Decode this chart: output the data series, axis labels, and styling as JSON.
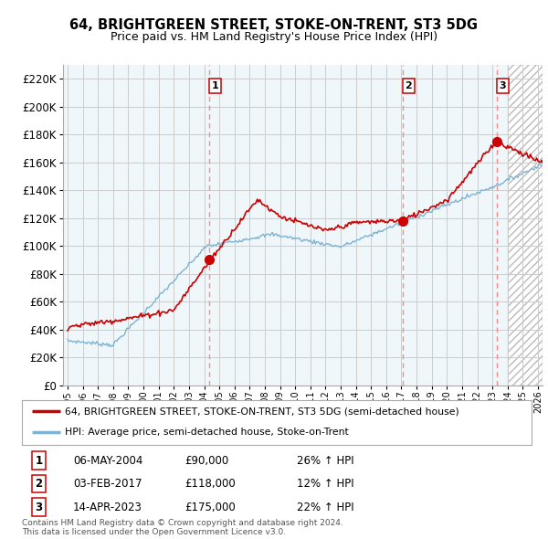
{
  "title": "64, BRIGHTGREEN STREET, STOKE-ON-TRENT, ST3 5DG",
  "subtitle": "Price paid vs. HM Land Registry's House Price Index (HPI)",
  "ytick_values": [
    0,
    20000,
    40000,
    60000,
    80000,
    100000,
    120000,
    140000,
    160000,
    180000,
    200000,
    220000
  ],
  "ylim": [
    0,
    230000
  ],
  "sale_years_numeric": [
    2004.333,
    2017.083,
    2023.292
  ],
  "sale_prices": [
    90000,
    118000,
    175000
  ],
  "sale_labels": [
    "1",
    "2",
    "3"
  ],
  "sale_hpi_pct": [
    "26% ↑ HPI",
    "12% ↑ HPI",
    "22% ↑ HPI"
  ],
  "sale_date_labels": [
    "06-MAY-2004",
    "03-FEB-2017",
    "14-APR-2023"
  ],
  "sale_price_labels": [
    "£90,000",
    "£118,000",
    "£175,000"
  ],
  "legend_line1": "64, BRIGHTGREEN STREET, STOKE-ON-TRENT, ST3 5DG (semi-detached house)",
  "legend_line2": "HPI: Average price, semi-detached house, Stoke-on-Trent",
  "footnote": "Contains HM Land Registry data © Crown copyright and database right 2024.\nThis data is licensed under the Open Government Licence v3.0.",
  "line_color_red": "#cc0000",
  "line_color_blue": "#7fb3d3",
  "fill_color_blue": "#ddeef6",
  "bg_color": "#ffffff",
  "grid_color": "#cccccc",
  "vline_color": "#ff8888",
  "hatch_start": 2024.0,
  "xmin": 1994.7,
  "xmax": 2026.3
}
